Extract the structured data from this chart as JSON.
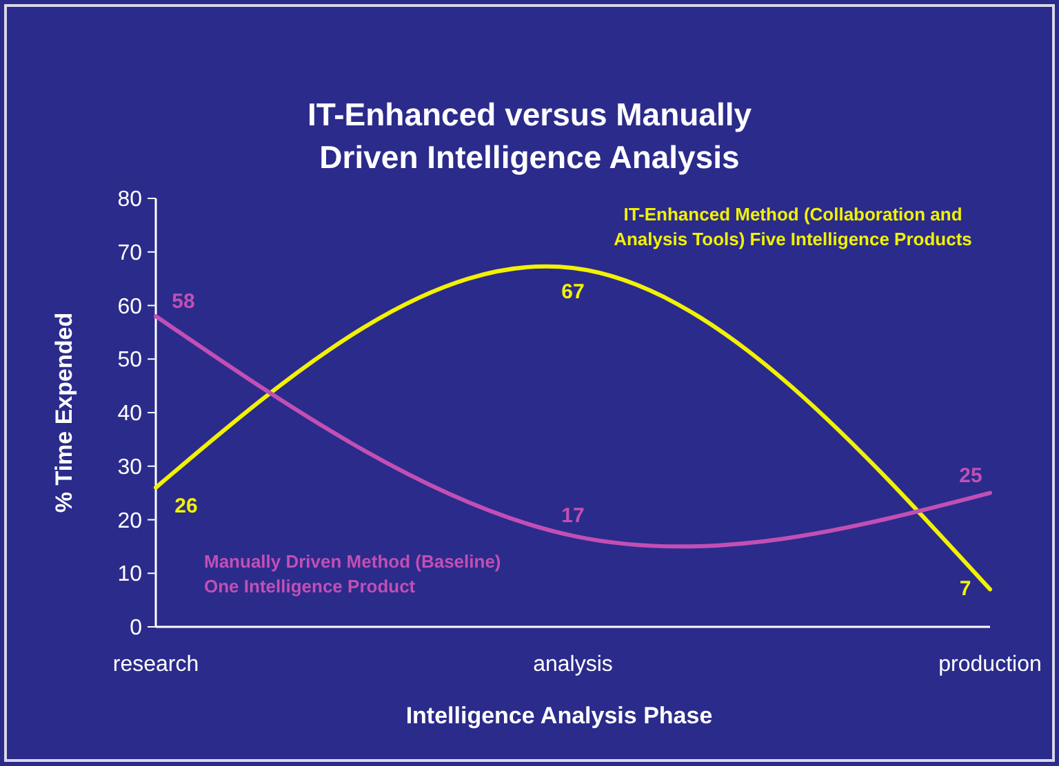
{
  "chart_data": {
    "type": "line",
    "title": "IT-Enhanced versus Manually Driven Intelligence Analysis",
    "xlabel": "Intelligence Analysis Phase",
    "ylabel": "% Time Expended",
    "categories": [
      "research",
      "analysis",
      "production"
    ],
    "series": [
      {
        "name": "IT-Enhanced Method (Collaboration and\nAnalysis Tools) Five Intelligence Products",
        "color": "#f2f200",
        "values": [
          26,
          67,
          7
        ]
      },
      {
        "name": "Manually Driven Method (Baseline)\nOne Intelligence Product",
        "color": "#c24fb4",
        "values": [
          58,
          17,
          25
        ]
      }
    ],
    "ylim": [
      0,
      80
    ],
    "yticks": [
      0,
      10,
      20,
      30,
      40,
      50,
      60,
      70,
      80
    ],
    "data_labels": true,
    "grid": false,
    "marker": "none",
    "line_style": "solid"
  }
}
